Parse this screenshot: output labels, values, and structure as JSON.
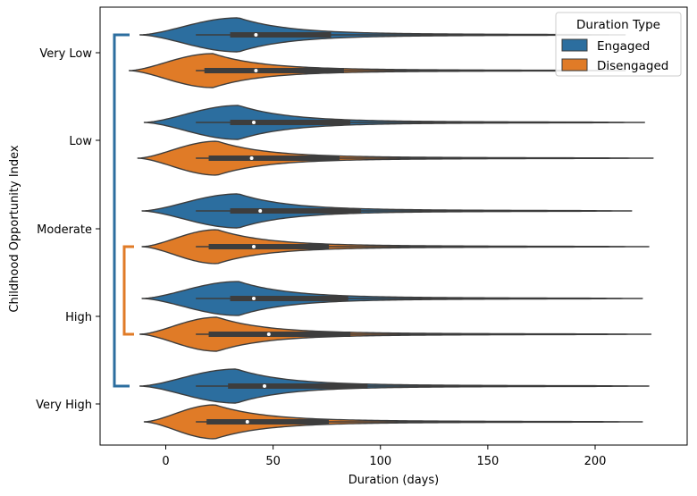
{
  "chart_data": {
    "type": "violin",
    "orientation": "horizontal",
    "xlabel": "Duration (days)",
    "ylabel": "Childhood Opportunity Index",
    "xlim": [
      -30,
      240
    ],
    "xticks": [
      0,
      50,
      100,
      150,
      200
    ],
    "categories": [
      "Very Low",
      "Low",
      "Moderate",
      "High",
      "Very High"
    ],
    "legend": {
      "title": "Duration Type",
      "placement": "top-right"
    },
    "series": [
      {
        "name": "Engaged",
        "color": "#2c6e9f",
        "stats": [
          {
            "category": "Very Low",
            "min": -12,
            "whisker_low": 14,
            "q1": 30,
            "median": 42,
            "q3": 77,
            "whisker_high": 186,
            "max": 214
          },
          {
            "category": "Low",
            "min": -10,
            "whisker_low": 14,
            "q1": 30,
            "median": 41,
            "q3": 86,
            "whisker_high": 186,
            "max": 223
          },
          {
            "category": "Moderate",
            "min": -11,
            "whisker_low": 14,
            "q1": 30,
            "median": 44,
            "q3": 91,
            "whisker_high": 186,
            "max": 217
          },
          {
            "category": "High",
            "min": -11,
            "whisker_low": 14,
            "q1": 30,
            "median": 41,
            "q3": 85,
            "whisker_high": 186,
            "max": 222
          },
          {
            "category": "Very High",
            "min": -12,
            "whisker_low": 14,
            "q1": 29,
            "median": 46,
            "q3": 94,
            "whisker_high": 186,
            "max": 225
          }
        ]
      },
      {
        "name": "Disengaged",
        "color": "#e07b27",
        "stats": [
          {
            "category": "Very Low",
            "min": -17,
            "whisker_low": 14,
            "q1": 18,
            "median": 42,
            "q3": 83,
            "whisker_high": 186,
            "max": 214
          },
          {
            "category": "Low",
            "min": -13,
            "whisker_low": 14,
            "q1": 20,
            "median": 40,
            "q3": 81,
            "whisker_high": 186,
            "max": 227
          },
          {
            "category": "Moderate",
            "min": -11,
            "whisker_low": 14,
            "q1": 20,
            "median": 41,
            "q3": 76,
            "whisker_high": 186,
            "max": 225
          },
          {
            "category": "High",
            "min": -12,
            "whisker_low": 14,
            "q1": 20,
            "median": 48,
            "q3": 86,
            "whisker_high": 186,
            "max": 226
          },
          {
            "category": "Very High",
            "min": -10,
            "whisker_low": 14,
            "q1": 19,
            "median": 38,
            "q3": 76,
            "whisker_high": 186,
            "max": 222
          }
        ]
      }
    ],
    "significance_brackets": [
      {
        "from": "Very Low",
        "to": "Very High",
        "series": "Engaged",
        "color": "#2c6e9f"
      },
      {
        "from": "Moderate",
        "to": "High",
        "series": "Disengaged",
        "color": "#e07b27"
      }
    ]
  }
}
